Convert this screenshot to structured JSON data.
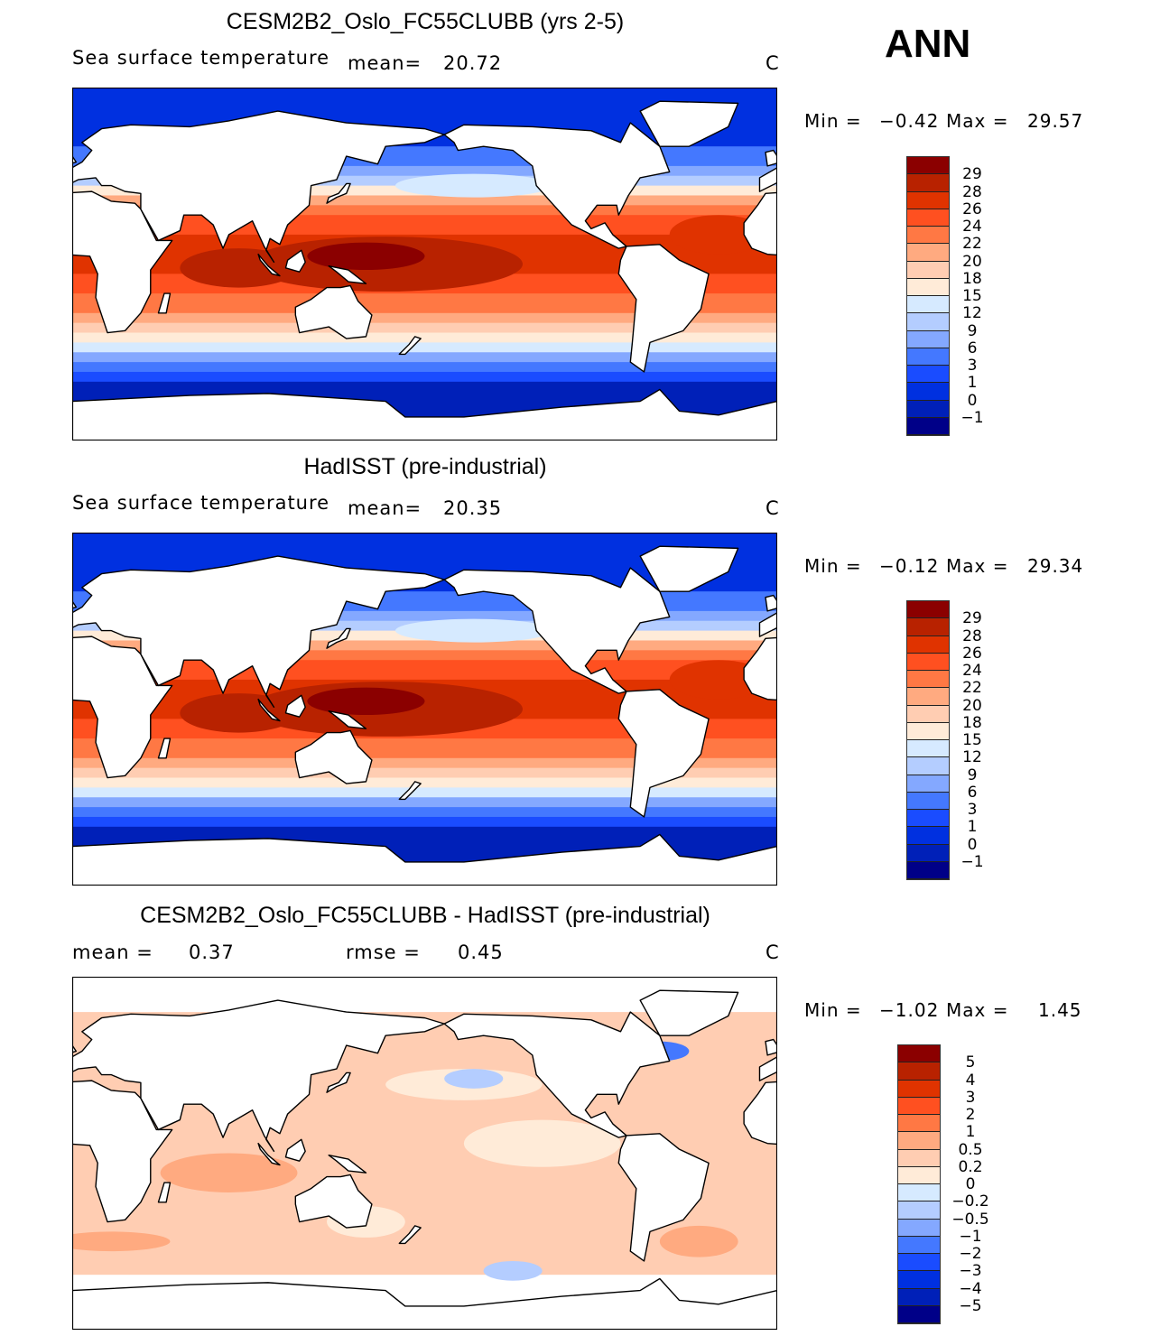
{
  "corner_label": "ANN",
  "units": "C",
  "colors": [
    "#8b0000",
    "#b82200",
    "#e03300",
    "#ff5020",
    "#ff7844",
    "#ffaa80",
    "#ffcdb2",
    "#ffebd8",
    "#d6eaff",
    "#b4cdff",
    "#84a8ff",
    "#4478ff",
    "#1a4cff",
    "#0030e0",
    "#0020b8",
    "#000088"
  ],
  "panels": [
    {
      "title": "CESM2B2_Oslo_FC55CLUBB (yrs 2-5)",
      "left_label": "Sea surface temperature",
      "mean_label": "mean=",
      "mean_value": "20.72",
      "units": "C",
      "min_label": "Min =",
      "min_value": "−0.42",
      "max_label": "Max =",
      "max_value": "29.57",
      "colorbar_ticks": [
        "29",
        "28",
        "26",
        "24",
        "22",
        "20",
        "18",
        "15",
        "12",
        "9",
        "6",
        "3",
        "1",
        "0",
        "−1"
      ]
    },
    {
      "title": "HadISST (pre-industrial)",
      "left_label": "Sea surface temperature",
      "mean_label": "mean=",
      "mean_value": "20.35",
      "units": "C",
      "min_label": "Min =",
      "min_value": "−0.12",
      "max_label": "Max =",
      "max_value": "29.34",
      "colorbar_ticks": [
        "29",
        "28",
        "26",
        "24",
        "22",
        "20",
        "18",
        "15",
        "12",
        "9",
        "6",
        "3",
        "1",
        "0",
        "−1"
      ]
    },
    {
      "title": "CESM2B2_Oslo_FC55CLUBB - HadISST (pre-industrial)",
      "left_label": "mean =",
      "left_value": "0.37",
      "rmse_label": "rmse =",
      "rmse_value": "0.45",
      "units": "C",
      "min_label": "Min =",
      "min_value": "−1.02",
      "max_label": "Max =",
      "max_value": "1.45",
      "colorbar_ticks": [
        "5",
        "4",
        "3",
        "2",
        "1",
        "0.5",
        "0.2",
        "0",
        "−0.2",
        "−0.5",
        "−1",
        "−2",
        "−3",
        "−4",
        "−5"
      ]
    }
  ]
}
